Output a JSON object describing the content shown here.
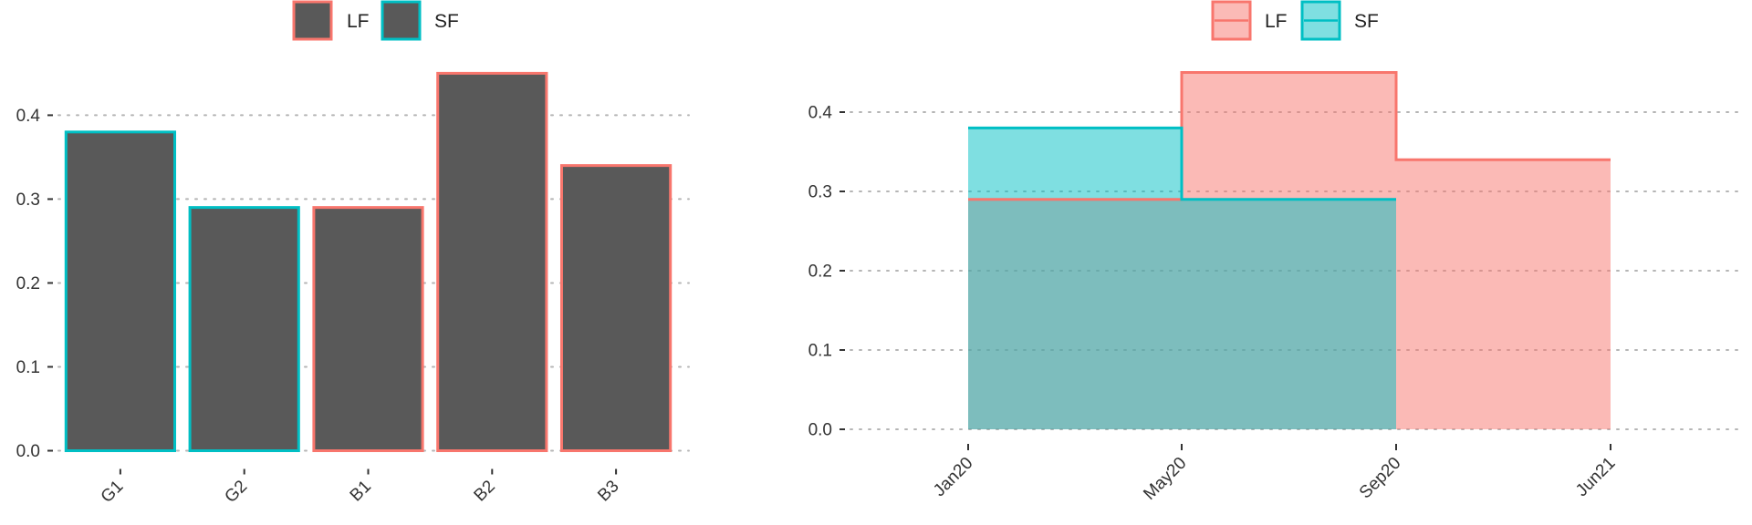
{
  "colors": {
    "LF": "#F8766D",
    "SF": "#00BFC4",
    "bar_fill": "#595959",
    "grid": "#b5b5b5"
  },
  "legend": [
    {
      "label": "LF"
    },
    {
      "label": "SF"
    }
  ],
  "chart_data": [
    {
      "type": "bar",
      "title": "",
      "xlabel": "",
      "ylabel": "",
      "categories": [
        "G1",
        "G2",
        "B1",
        "B2",
        "B3"
      ],
      "values": [
        0.38,
        0.29,
        0.29,
        0.45,
        0.34
      ],
      "outline_group": [
        "SF",
        "SF",
        "LF",
        "LF",
        "LF"
      ],
      "ylim": [
        0,
        0.45
      ],
      "yticks": [
        "0.0",
        "0.1",
        "0.2",
        "0.3",
        "0.4"
      ],
      "grid": true,
      "legend_position": "top"
    },
    {
      "type": "area",
      "step": true,
      "title": "",
      "xlabel": "",
      "ylabel": "",
      "x_ticks": [
        "Jan20",
        "May20",
        "Sep20",
        "Jun21"
      ],
      "series": [
        {
          "name": "LF",
          "x": [
            "Jan20",
            "May20",
            "Sep20",
            "Jun21"
          ],
          "values": [
            0.29,
            0.45,
            0.34,
            0.34
          ]
        },
        {
          "name": "SF",
          "x": [
            "Jan20",
            "May20",
            "Sep20"
          ],
          "values": [
            0.38,
            0.29,
            0.29
          ]
        }
      ],
      "ylim": [
        0,
        0.45
      ],
      "yticks": [
        "0.0",
        "0.1",
        "0.2",
        "0.3",
        "0.4"
      ],
      "grid": true,
      "legend_position": "top"
    }
  ]
}
